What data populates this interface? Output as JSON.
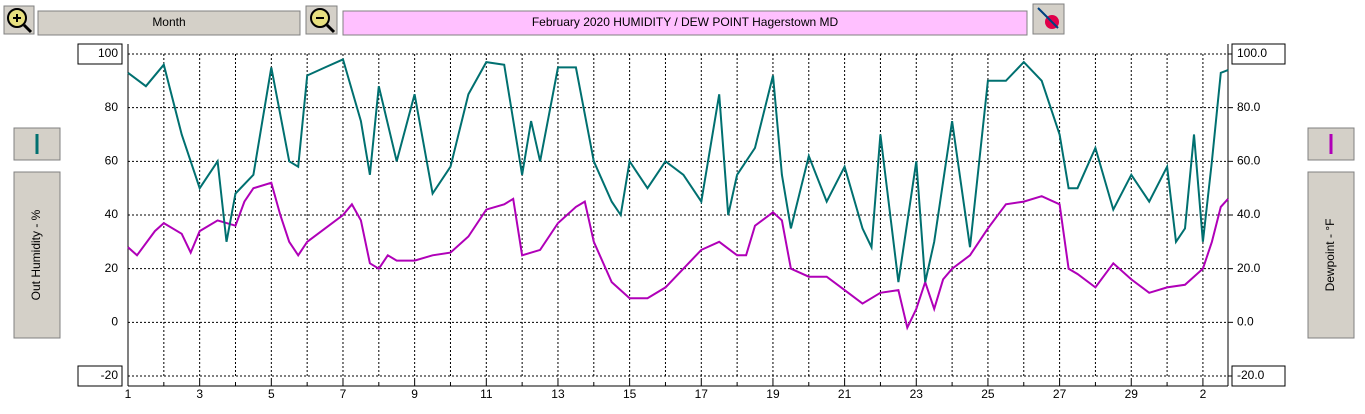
{
  "toolbar": {
    "range": "Month"
  },
  "chart_data": {
    "type": "line",
    "title": "February  2020   HUMIDITY / DEW POINT  Hagerstown MD",
    "xlim": [
      1,
      31.7
    ],
    "xticks": [
      1,
      3,
      5,
      7,
      9,
      11,
      13,
      15,
      17,
      19,
      21,
      23,
      25,
      27,
      29,
      {
        "value": 31,
        "label": "2"
      }
    ],
    "xminorticks": [
      2,
      4,
      6,
      8,
      10,
      12,
      14,
      16,
      18,
      20,
      22,
      24,
      26,
      28,
      30
    ],
    "ylim": [
      -20,
      100
    ],
    "yticks": [
      -20,
      0,
      20,
      40,
      60,
      80,
      100
    ],
    "y2lim": [
      -20,
      100
    ],
    "y2ticks": [
      {
        "value": -20,
        "label": "-20.0"
      },
      {
        "value": 0,
        "label": "0.0"
      },
      {
        "value": 20,
        "label": "20.0"
      },
      {
        "value": 40,
        "label": "40.0"
      },
      {
        "value": 60,
        "label": "60.0"
      },
      {
        "value": 80,
        "label": "80.0"
      },
      {
        "value": 100,
        "label": "100.0"
      }
    ],
    "grid": true,
    "series": [
      {
        "name": "Out Humidity - %",
        "color": "#007070",
        "axis": "y",
        "x": [
          1,
          1.5,
          2,
          2.5,
          3,
          3.5,
          3.75,
          4,
          4.5,
          5,
          5.5,
          5.75,
          6,
          6.5,
          7,
          7.5,
          7.75,
          8,
          8.5,
          9,
          9.5,
          10,
          10.5,
          11,
          11.5,
          12,
          12.25,
          12.5,
          13,
          13.5,
          14,
          14.5,
          14.75,
          15,
          15.5,
          16,
          16.5,
          17,
          17.5,
          17.75,
          18,
          18.5,
          19,
          19.25,
          19.5,
          20,
          20.5,
          21,
          21.5,
          21.75,
          22,
          22.5,
          23,
          23.25,
          23.5,
          24,
          24.5,
          25,
          25.5,
          26,
          26.5,
          27,
          27.25,
          27.5,
          28,
          28.5,
          29,
          29.5,
          30,
          30.25,
          30.5,
          30.75,
          31,
          31.25,
          31.5,
          31.7
        ],
        "values": [
          93,
          88,
          96,
          70,
          50,
          60,
          30,
          48,
          55,
          95,
          60,
          58,
          92,
          95,
          98,
          75,
          55,
          88,
          60,
          85,
          48,
          58,
          85,
          97,
          96,
          55,
          75,
          60,
          95,
          95,
          60,
          45,
          40,
          60,
          50,
          60,
          55,
          45,
          85,
          40,
          55,
          65,
          92,
          55,
          35,
          62,
          45,
          58,
          35,
          28,
          70,
          15,
          60,
          15,
          30,
          75,
          28,
          90,
          90,
          97,
          90,
          70,
          50,
          50,
          65,
          42,
          55,
          45,
          58,
          30,
          35,
          70,
          30,
          60,
          93,
          94
        ]
      },
      {
        "name": "Dewpoint - °F",
        "color": "#b000b8",
        "axis": "y2",
        "x": [
          1,
          1.25,
          1.75,
          2,
          2.5,
          2.75,
          3,
          3.5,
          4,
          4.25,
          4.5,
          5,
          5.25,
          5.5,
          5.75,
          6,
          6.5,
          7,
          7.25,
          7.5,
          7.75,
          8,
          8.25,
          8.5,
          9,
          9.5,
          10,
          10.5,
          11,
          11.5,
          11.75,
          12,
          12.5,
          13,
          13.5,
          13.75,
          14,
          14.5,
          15,
          15.5,
          16,
          16.5,
          17,
          17.5,
          18,
          18.25,
          18.5,
          19,
          19.25,
          19.5,
          20,
          20.5,
          21,
          21.5,
          22,
          22.5,
          22.75,
          23,
          23.25,
          23.5,
          23.75,
          24,
          24.5,
          25,
          25.5,
          26,
          26.5,
          27,
          27.25,
          27.5,
          28,
          28.5,
          29,
          29.5,
          30,
          30.5,
          31,
          31.25,
          31.5,
          31.7
        ],
        "values": [
          28,
          25,
          34,
          37,
          33,
          26,
          34,
          38,
          36,
          45,
          50,
          52,
          40,
          30,
          25,
          30,
          35,
          40,
          44,
          38,
          22,
          20,
          25,
          23,
          23,
          25,
          26,
          32,
          42,
          44,
          46,
          25,
          27,
          37,
          43,
          45,
          30,
          15,
          9,
          9,
          13,
          20,
          27,
          30,
          25,
          25,
          36,
          41,
          38,
          20,
          17,
          17,
          12,
          7,
          11,
          12,
          -2,
          5,
          15,
          5,
          16,
          20,
          25,
          35,
          44,
          45,
          47,
          44,
          20,
          18,
          13,
          22,
          16,
          11,
          13,
          14,
          20,
          30,
          43,
          46
        ]
      }
    ]
  }
}
